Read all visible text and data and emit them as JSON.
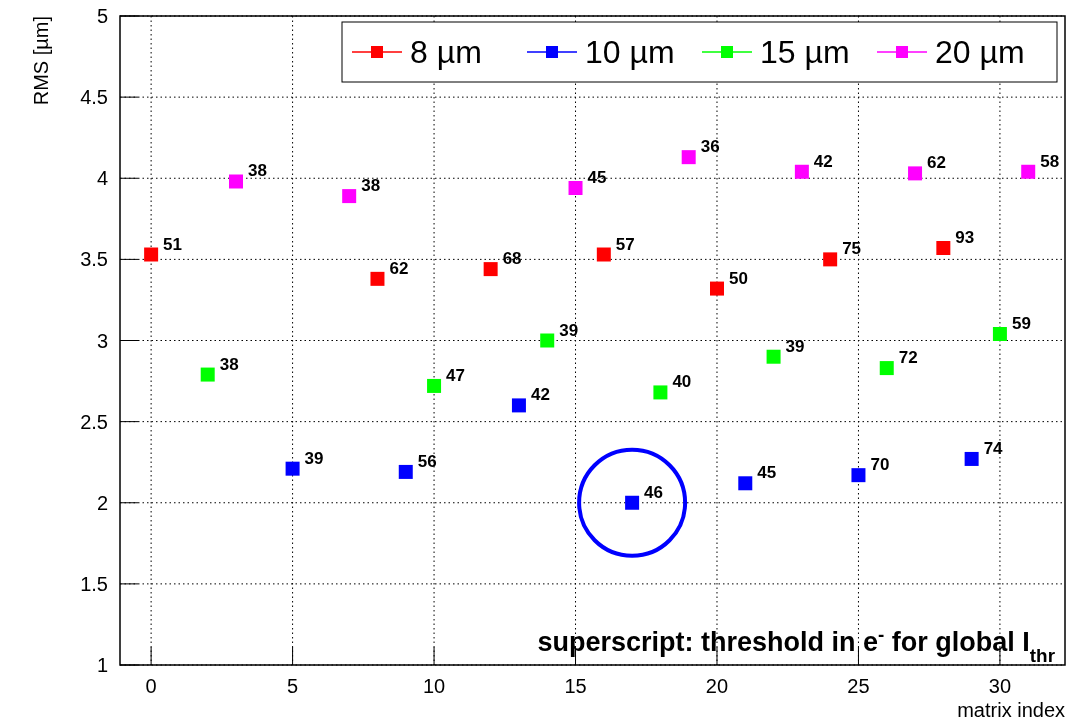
{
  "chart_data": {
    "type": "scatter",
    "xlabel": "matrix index",
    "ylabel": "RMS [µm]",
    "xlim": [
      -1.1,
      32.3
    ],
    "xticks": [
      0,
      5,
      10,
      15,
      20,
      25,
      30
    ],
    "ylim": [
      1,
      5
    ],
    "yticks": [
      1,
      1.5,
      2,
      2.5,
      3,
      3.5,
      4,
      4.5,
      5
    ],
    "grid": true,
    "legend": "top right",
    "marker": "square",
    "annotations": [
      "superscript: threshold in e$^{-}$ for global I$_{thr}$",
      {
        "text": "51",
        "x": 0,
        "y": 3.53
      },
      {
        "text": "62",
        "x": 8,
        "y": 3.38
      },
      {
        "text": "68",
        "x": 12,
        "y": 3.44
      },
      {
        "text": "57",
        "x": 16,
        "y": 3.53
      },
      {
        "text": "50",
        "x": 20,
        "y": 3.32
      },
      {
        "text": "75",
        "x": 24,
        "y": 3.5
      },
      {
        "text": "93",
        "x": 28,
        "y": 3.57
      },
      {
        "text": "39",
        "x": 5,
        "y": 2.21
      },
      {
        "text": "56",
        "x": 9,
        "y": 2.19
      },
      {
        "text": "42",
        "x": 13,
        "y": 2.6
      },
      {
        "text": "46",
        "x": 17,
        "y": 2.0
      },
      {
        "text": "45",
        "x": 21,
        "y": 2.12
      },
      {
        "text": "70",
        "x": 25,
        "y": 2.17
      },
      {
        "text": "74",
        "x": 29,
        "y": 2.27
      },
      {
        "text": "38",
        "x": 2,
        "y": 2.79
      },
      {
        "text": "47",
        "x": 10,
        "y": 2.72
      },
      {
        "text": "39",
        "x": 14,
        "y": 3.0
      },
      {
        "text": "40",
        "x": 18,
        "y": 2.68
      },
      {
        "text": "39",
        "x": 22,
        "y": 2.9
      },
      {
        "text": "72",
        "x": 26,
        "y": 2.83
      },
      {
        "text": "59",
        "x": 30,
        "y": 3.04
      },
      {
        "text": "38",
        "x": 3,
        "y": 3.98
      },
      {
        "text": "38",
        "x": 7,
        "y": 3.89
      },
      {
        "text": "45",
        "x": 15,
        "y": 3.94
      },
      {
        "text": "36",
        "x": 19,
        "y": 4.13
      },
      {
        "text": "42",
        "x": 23,
        "y": 4.04
      },
      {
        "text": "62",
        "x": 27,
        "y": 4.03
      },
      {
        "text": "58",
        "x": 31,
        "y": 4.04
      }
    ],
    "series": [
      {
        "name": "8 µm",
        "color": "#ff0000",
        "x": [
          0,
          8,
          12,
          16,
          20,
          24,
          28
        ],
        "values": [
          3.53,
          3.38,
          3.44,
          3.53,
          3.32,
          3.5,
          3.57
        ]
      },
      {
        "name": "10 µm",
        "color": "#0000ff",
        "x": [
          5,
          9,
          13,
          17,
          21,
          25,
          29
        ],
        "values": [
          2.21,
          2.19,
          2.6,
          2.0,
          2.12,
          2.17,
          2.27
        ]
      },
      {
        "name": "15 µm",
        "color": "#00ff00",
        "x": [
          2,
          10,
          14,
          18,
          22,
          26,
          30
        ],
        "values": [
          2.79,
          2.72,
          3.0,
          2.68,
          2.9,
          2.83,
          3.04
        ]
      },
      {
        "name": "20 µm",
        "color": "#ff00ff",
        "x": [
          3,
          7,
          15,
          19,
          23,
          27,
          31
        ],
        "values": [
          3.98,
          3.89,
          3.94,
          4.13,
          4.04,
          4.03,
          4.04
        ]
      }
    ]
  }
}
